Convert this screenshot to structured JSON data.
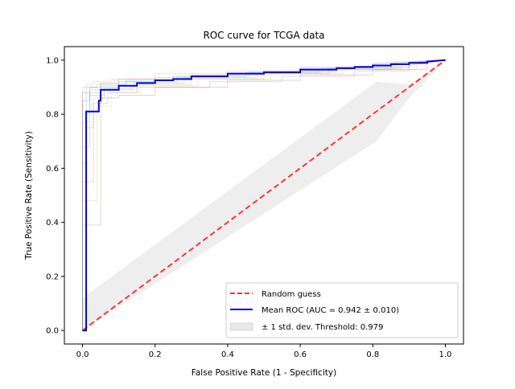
{
  "chart_data": {
    "type": "line",
    "title": "ROC curve for TCGA data",
    "xlabel": "False Positive Rate (1 - Specificity)",
    "ylabel": "True Positive Rate (Sensitivity)",
    "xlim": [
      -0.05,
      1.05
    ],
    "ylim": [
      -0.05,
      1.05
    ],
    "xticks": [
      0.0,
      0.2,
      0.4,
      0.6,
      0.8,
      1.0
    ],
    "xtick_labels": [
      "0.0",
      "0.2",
      "0.4",
      "0.6",
      "0.8",
      "1.0"
    ],
    "yticks": [
      0.0,
      0.2,
      0.4,
      0.6,
      0.8,
      1.0
    ],
    "ytick_labels": [
      "0.0",
      "0.2",
      "0.4",
      "0.6",
      "0.8",
      "1.0"
    ],
    "grid": false,
    "legend_position": "lower-right",
    "random_guess": {
      "label": "Random guess",
      "color": "#ff3333",
      "style": "dashed",
      "x": [
        0,
        1
      ],
      "y": [
        0,
        1
      ]
    },
    "mean_roc": {
      "label": "Mean ROC (AUC = 0.942 ± 0.010)",
      "color": "#0000dd",
      "x": [
        0.0,
        0.0,
        0.01,
        0.01,
        0.045,
        0.045,
        0.05,
        0.05,
        0.1,
        0.1,
        0.15,
        0.15,
        0.2,
        0.2,
        0.25,
        0.25,
        0.3,
        0.3,
        0.4,
        0.4,
        0.5,
        0.5,
        0.6,
        0.6,
        0.7,
        0.7,
        0.75,
        0.75,
        0.8,
        0.8,
        0.85,
        0.85,
        0.9,
        0.9,
        0.95,
        0.95,
        1.0
      ],
      "y": [
        0.0,
        0.0,
        0.0,
        0.81,
        0.81,
        0.85,
        0.85,
        0.89,
        0.89,
        0.905,
        0.905,
        0.915,
        0.915,
        0.925,
        0.925,
        0.93,
        0.93,
        0.94,
        0.94,
        0.95,
        0.95,
        0.955,
        0.955,
        0.965,
        0.965,
        0.97,
        0.97,
        0.975,
        0.975,
        0.98,
        0.98,
        0.985,
        0.985,
        0.99,
        0.99,
        0.995,
        1.0
      ]
    },
    "std_band": {
      "label": "± 1 std. dev. Threshold: 0.979",
      "color": "#d9d9d9",
      "upper": [
        [
          0.0,
          0.12
        ],
        [
          0.81,
          0.92
        ],
        [
          0.9,
          0.91
        ],
        [
          1.0,
          1.0
        ]
      ],
      "lower": [
        [
          0.0,
          0.0
        ],
        [
          0.81,
          0.7
        ],
        [
          0.9,
          0.86
        ],
        [
          1.0,
          1.0
        ]
      ]
    },
    "fold_curves": {
      "colors": [
        "#1f77b4",
        "#ff7f0e",
        "#2ca02c",
        "#d62728",
        "#9467bd",
        "#8c564b",
        "#e377c2",
        "#7f7f7f",
        "#bcbd22",
        "#17becf"
      ],
      "series": [
        {
          "x": [
            0,
            0,
            0.02,
            0.02,
            0.05,
            0.05,
            0.1,
            0.1,
            0.2,
            0.2,
            0.4,
            0.4,
            0.6,
            0.6,
            0.8,
            0.8,
            1.0
          ],
          "y": [
            0,
            0.85,
            0.85,
            0.88,
            0.88,
            0.9,
            0.9,
            0.92,
            0.92,
            0.935,
            0.935,
            0.95,
            0.95,
            0.97,
            0.97,
            0.985,
            1.0
          ]
        },
        {
          "x": [
            0,
            0,
            0.03,
            0.03,
            0.06,
            0.06,
            0.15,
            0.15,
            0.3,
            0.3,
            0.5,
            0.5,
            0.7,
            0.7,
            0.9,
            0.9,
            1.0
          ],
          "y": [
            0,
            0.75,
            0.75,
            0.86,
            0.86,
            0.89,
            0.89,
            0.91,
            0.91,
            0.93,
            0.93,
            0.955,
            0.955,
            0.97,
            0.97,
            0.99,
            1.0
          ]
        },
        {
          "x": [
            0,
            0,
            0.01,
            0.01,
            0.04,
            0.04,
            0.12,
            0.12,
            0.25,
            0.25,
            0.45,
            0.45,
            0.65,
            0.65,
            0.85,
            0.85,
            1.0
          ],
          "y": [
            0,
            0.62,
            0.62,
            0.9,
            0.9,
            0.91,
            0.91,
            0.925,
            0.925,
            0.94,
            0.94,
            0.955,
            0.955,
            0.965,
            0.965,
            0.98,
            1.0
          ]
        },
        {
          "x": [
            0,
            0,
            0.02,
            0.02,
            0.05,
            0.05,
            0.1,
            0.1,
            0.3,
            0.3,
            0.5,
            0.5,
            0.7,
            0.7,
            0.9,
            0.9,
            1.0
          ],
          "y": [
            0,
            0.88,
            0.88,
            0.9,
            0.9,
            0.915,
            0.915,
            0.93,
            0.93,
            0.945,
            0.945,
            0.96,
            0.96,
            0.975,
            0.975,
            0.99,
            1.0
          ]
        },
        {
          "x": [
            0,
            0,
            0.03,
            0.03,
            0.07,
            0.07,
            0.15,
            0.15,
            0.35,
            0.35,
            0.55,
            0.55,
            0.75,
            0.75,
            0.9,
            0.9,
            1.0
          ],
          "y": [
            0,
            0.55,
            0.55,
            0.84,
            0.84,
            0.88,
            0.88,
            0.9,
            0.9,
            0.92,
            0.92,
            0.94,
            0.94,
            0.96,
            0.96,
            0.98,
            1.0
          ]
        },
        {
          "x": [
            0,
            0,
            0.05,
            0.05,
            0.1,
            0.1,
            0.2,
            0.2,
            0.4,
            0.4,
            0.6,
            0.6,
            0.8,
            0.8,
            0.95,
            0.95,
            1.0
          ],
          "y": [
            0,
            0.39,
            0.39,
            0.86,
            0.86,
            0.87,
            0.87,
            0.9,
            0.9,
            0.925,
            0.925,
            0.945,
            0.945,
            0.965,
            0.965,
            0.99,
            1.0
          ]
        },
        {
          "x": [
            0,
            0,
            0.01,
            0.01,
            0.03,
            0.03,
            0.08,
            0.08,
            0.2,
            0.2,
            0.4,
            0.4,
            0.6,
            0.6,
            0.8,
            0.8,
            1.0
          ],
          "y": [
            0,
            0.9,
            0.9,
            0.91,
            0.91,
            0.92,
            0.92,
            0.93,
            0.93,
            0.95,
            0.95,
            0.96,
            0.96,
            0.975,
            0.975,
            0.99,
            1.0
          ]
        },
        {
          "x": [
            0,
            0,
            0.02,
            0.02,
            0.06,
            0.06,
            0.14,
            0.14,
            0.28,
            0.28,
            0.48,
            0.48,
            0.68,
            0.68,
            0.88,
            0.88,
            1.0
          ],
          "y": [
            0,
            0.68,
            0.68,
            0.87,
            0.87,
            0.895,
            0.895,
            0.915,
            0.915,
            0.935,
            0.935,
            0.95,
            0.95,
            0.97,
            0.97,
            0.985,
            1.0
          ]
        },
        {
          "x": [
            0,
            0,
            0.04,
            0.04,
            0.08,
            0.08,
            0.16,
            0.16,
            0.32,
            0.32,
            0.52,
            0.52,
            0.72,
            0.72,
            0.92,
            0.92,
            1.0
          ],
          "y": [
            0,
            0.48,
            0.48,
            0.83,
            0.83,
            0.88,
            0.88,
            0.905,
            0.905,
            0.93,
            0.93,
            0.95,
            0.95,
            0.965,
            0.965,
            0.985,
            1.0
          ]
        },
        {
          "x": [
            0,
            0,
            0.02,
            0.02,
            0.05,
            0.05,
            0.12,
            0.12,
            0.26,
            0.26,
            0.46,
            0.46,
            0.66,
            0.66,
            0.86,
            0.86,
            1.0
          ],
          "y": [
            0,
            0.8,
            0.8,
            0.89,
            0.89,
            0.905,
            0.905,
            0.92,
            0.92,
            0.94,
            0.94,
            0.955,
            0.955,
            0.97,
            0.97,
            0.99,
            1.0
          ]
        }
      ]
    }
  }
}
